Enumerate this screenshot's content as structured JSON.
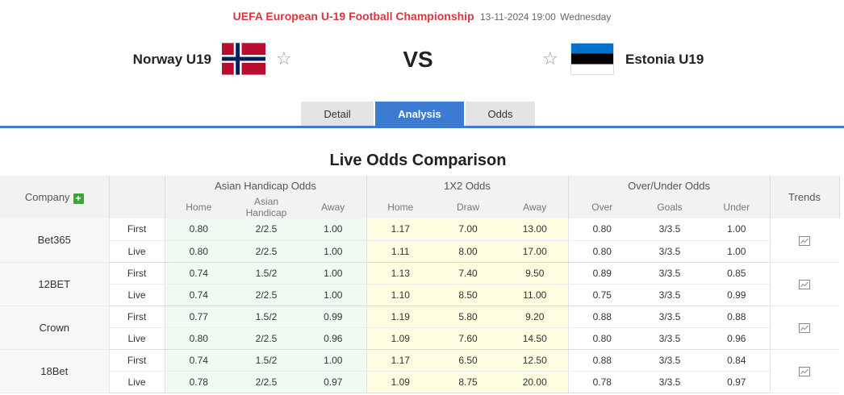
{
  "match": {
    "league": "UEFA European U-19 Football Championship",
    "date": "13-11-2024 19:00",
    "weekday": "Wednesday",
    "home_team": "Norway U19",
    "away_team": "Estonia U19",
    "vs": "VS"
  },
  "tabs": [
    {
      "label": "Detail",
      "active": false
    },
    {
      "label": "Analysis",
      "active": true
    },
    {
      "label": "Odds",
      "active": false
    }
  ],
  "section_title": "Live Odds Comparison",
  "table": {
    "company_header": "Company",
    "trends_header": "Trends",
    "groups": {
      "asian": "Asian Handicap Odds",
      "x12": "1X2 Odds",
      "ou": "Over/Under Odds"
    },
    "subheaders": {
      "asian": [
        "Home",
        "Asian Handicap",
        "Away"
      ],
      "x12": [
        "Home",
        "Draw",
        "Away"
      ],
      "ou": [
        "Over",
        "Goals",
        "Under"
      ]
    },
    "rows": [
      {
        "company": "Bet365",
        "first": {
          "phase": "First",
          "asian": [
            "0.80",
            "2/2.5",
            "1.00"
          ],
          "x12": [
            "1.17",
            "7.00",
            "13.00"
          ],
          "ou": [
            "0.80",
            "3/3.5",
            "1.00"
          ]
        },
        "live": {
          "phase": "Live",
          "asian": [
            "0.80",
            "2/2.5",
            "1.00"
          ],
          "x12": [
            "1.11",
            "8.00",
            "17.00"
          ],
          "ou": [
            "0.80",
            "3/3.5",
            "1.00"
          ]
        }
      },
      {
        "company": "12BET",
        "first": {
          "phase": "First",
          "asian": [
            "0.74",
            "1.5/2",
            "1.00"
          ],
          "x12": [
            "1.13",
            "7.40",
            "9.50"
          ],
          "ou": [
            "0.89",
            "3/3.5",
            "0.85"
          ]
        },
        "live": {
          "phase": "Live",
          "asian": [
            "0.74",
            "2/2.5",
            "1.00"
          ],
          "x12": [
            "1.10",
            "8.50",
            "11.00"
          ],
          "ou": [
            "0.75",
            "3/3.5",
            "0.99"
          ]
        }
      },
      {
        "company": "Crown",
        "first": {
          "phase": "First",
          "asian": [
            "0.77",
            "1.5/2",
            "0.99"
          ],
          "x12": [
            "1.19",
            "5.80",
            "9.20"
          ],
          "ou": [
            "0.88",
            "3/3.5",
            "0.88"
          ]
        },
        "live": {
          "phase": "Live",
          "asian": [
            "0.80",
            "2/2.5",
            "0.96"
          ],
          "x12": [
            "1.09",
            "7.60",
            "14.50"
          ],
          "ou": [
            "0.80",
            "3/3.5",
            "0.96"
          ]
        }
      },
      {
        "company": "18Bet",
        "first": {
          "phase": "First",
          "asian": [
            "0.74",
            "1.5/2",
            "1.00"
          ],
          "x12": [
            "1.17",
            "6.50",
            "12.50"
          ],
          "ou": [
            "0.88",
            "3/3.5",
            "0.84"
          ]
        },
        "live": {
          "phase": "Live",
          "asian": [
            "0.78",
            "2/2.5",
            "0.97"
          ],
          "x12": [
            "1.09",
            "8.75",
            "20.00"
          ],
          "ou": [
            "0.78",
            "3/3.5",
            "0.97"
          ]
        }
      }
    ]
  },
  "colors": {
    "league_red": "#d9363e",
    "accent_blue": "#3b7bd1",
    "asian_bg": "#f1faf1",
    "x12_bg": "#fdfbe0",
    "plus_green": "#3aa635"
  },
  "icons": {
    "favorite": "star-outline-icon",
    "add_company": "plus-icon",
    "trend": "line-chart-icon"
  }
}
